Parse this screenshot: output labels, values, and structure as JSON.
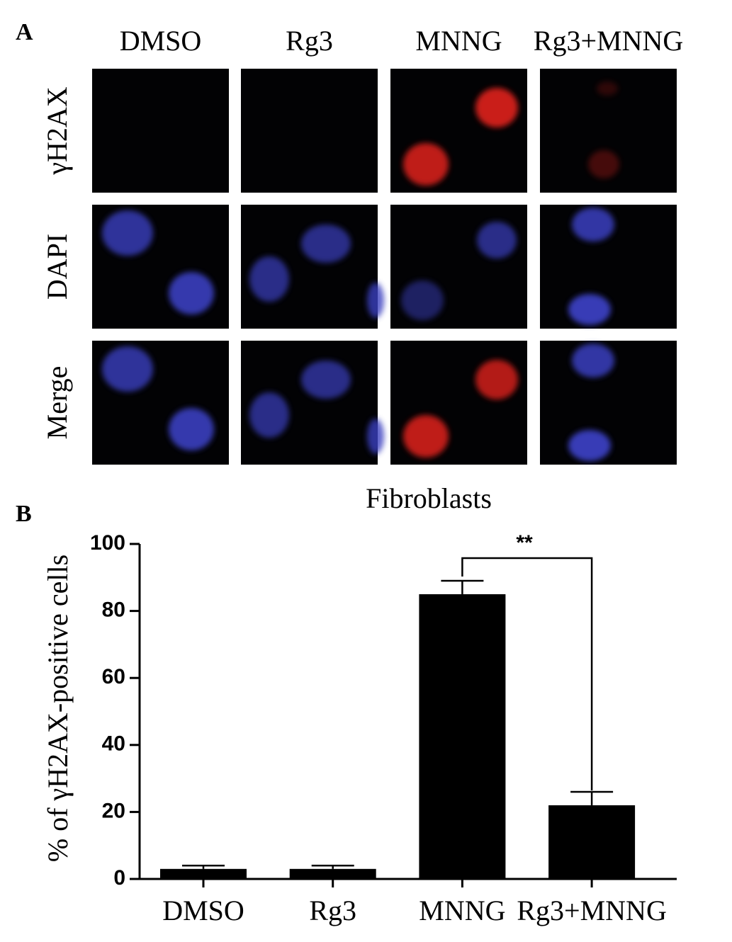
{
  "panel_a": {
    "letter": "A",
    "columns": [
      "DMSO",
      "Rg3",
      "MNNG",
      "Rg3+MNNG"
    ],
    "rows": [
      "γH2AX",
      "DAPI",
      "Merge"
    ]
  },
  "panel_b": {
    "letter": "B"
  },
  "chart_data": {
    "type": "bar",
    "title": "Fibroblasts",
    "y_label": "% of γH2AX-positive cells",
    "categories": [
      "DMSO",
      "Rg3",
      "MNNG",
      "Rg3+MNNG"
    ],
    "values": [
      3,
      3,
      85,
      22
    ],
    "errors": [
      1,
      1,
      4,
      4
    ],
    "color": "#000000",
    "ylim": [
      0,
      100
    ],
    "yticks": [
      0,
      20,
      40,
      60,
      80,
      100
    ],
    "annotation": "**"
  }
}
